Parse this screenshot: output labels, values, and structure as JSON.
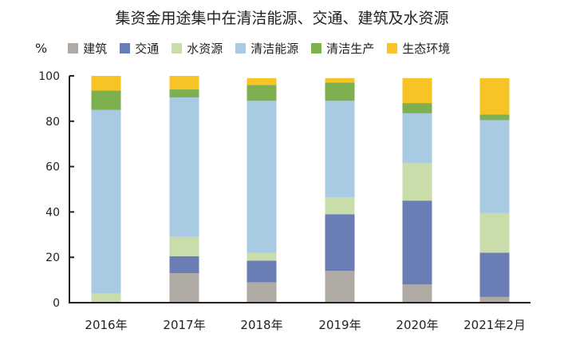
{
  "chart_data": {
    "type": "bar",
    "stacked": true,
    "title": "集资金用途集中在清洁能源、交通、建筑及水资源",
    "ylabel": "%",
    "ylim": [
      0,
      100
    ],
    "yticks": [
      0,
      20,
      40,
      60,
      80,
      100
    ],
    "categories": [
      "2016年",
      "2017年",
      "2018年",
      "2019年",
      "2020年",
      "2021年2月"
    ],
    "legend_position": "top",
    "series": [
      {
        "name": "建筑",
        "color": "#b0aaa5",
        "values": [
          0,
          13,
          9,
          14,
          8,
          2.5
        ]
      },
      {
        "name": "交通",
        "color": "#6a7db5",
        "values": [
          0,
          7.5,
          9.5,
          25,
          37,
          19.5
        ]
      },
      {
        "name": "水资源",
        "color": "#c9ddab",
        "values": [
          4,
          8.5,
          3.5,
          7.5,
          16.5,
          17.5
        ]
      },
      {
        "name": "清洁能源",
        "color": "#a8cae3",
        "values": [
          81,
          61.5,
          67,
          42.5,
          22,
          41
        ]
      },
      {
        "name": "清洁生产",
        "color": "#7fb04f",
        "values": [
          8.5,
          3.5,
          7,
          8,
          4.5,
          2.5
        ]
      },
      {
        "name": "生态环境",
        "color": "#f7c325",
        "values": [
          6.5,
          6,
          3,
          2,
          11,
          16
        ]
      }
    ]
  }
}
